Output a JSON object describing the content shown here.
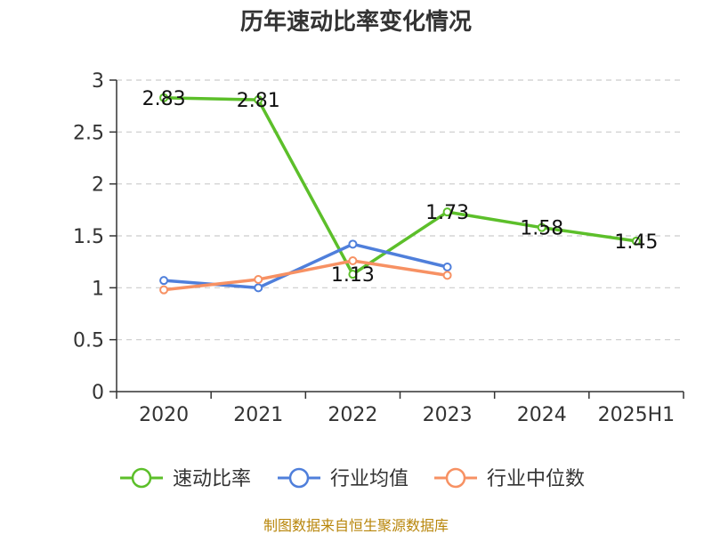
{
  "chart_data": {
    "type": "line",
    "title": "历年速动比率变化情况",
    "categories": [
      "2020",
      "2021",
      "2022",
      "2023",
      "2024",
      "2025H1"
    ],
    "ylim": [
      0,
      3
    ],
    "yticks": [
      "0",
      "0.5",
      "1",
      "1.5",
      "2",
      "2.5",
      "3"
    ],
    "grid": true,
    "legend_position": "bottom",
    "series": [
      {
        "name": "速动比率",
        "color": "#5cbf2a",
        "values": [
          2.83,
          2.81,
          1.13,
          1.73,
          1.58,
          1.45
        ],
        "labels": [
          "2.83",
          "2.81",
          "1.13",
          "1.73",
          "1.58",
          "1.45"
        ]
      },
      {
        "name": "行业均值",
        "color": "#4f7fdb",
        "values": [
          1.07,
          1.0,
          1.42,
          1.2,
          null,
          null
        ]
      },
      {
        "name": "行业中位数",
        "color": "#f79163",
        "values": [
          0.98,
          1.08,
          1.26,
          1.12,
          null,
          null
        ]
      }
    ]
  },
  "source_note": "制图数据来自恒生聚源数据库"
}
